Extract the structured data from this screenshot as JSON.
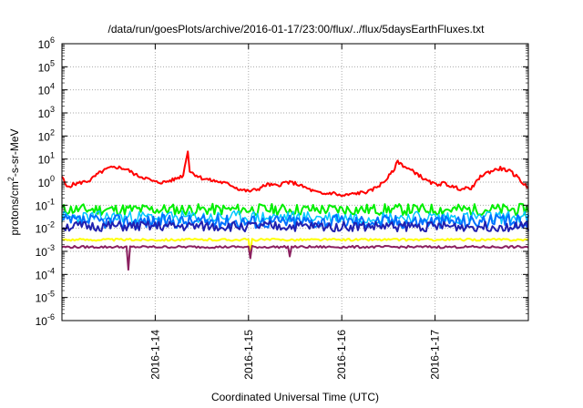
{
  "chart_data": {
    "type": "line",
    "title": "/data/run/goesPlots/archive/2016-01-17/23:00/flux/../flux/5daysEarthFluxes.txt",
    "xlabel": "Coordinated Universal Time (UTC)",
    "ylabel": {
      "pre": "protons/cm",
      "sup": "2",
      "post": "-s-sr-MeV"
    },
    "x_range_days": [
      0,
      5
    ],
    "x_ticks": [
      {
        "day": 1,
        "label": "2016-1-14"
      },
      {
        "day": 2,
        "label": "2016-1-15"
      },
      {
        "day": 3,
        "label": "2016-1-16"
      },
      {
        "day": 4,
        "label": "2016-1-17"
      }
    ],
    "y_scale": "log",
    "y_range_exp": [
      -6,
      6
    ],
    "y_ticks": [
      {
        "base": "10",
        "exp": "-6"
      },
      {
        "base": "10",
        "exp": "-5"
      },
      {
        "base": "10",
        "exp": "-4"
      },
      {
        "base": "10",
        "exp": "-3"
      },
      {
        "base": "10",
        "exp": "-2"
      },
      {
        "base": "10",
        "exp": "-1"
      },
      {
        "base": "10",
        "exp": "0"
      },
      {
        "base": "10",
        "exp": "1"
      },
      {
        "base": "10",
        "exp": "2"
      },
      {
        "base": "10",
        "exp": "3"
      },
      {
        "base": "10",
        "exp": "4"
      },
      {
        "base": "10",
        "exp": "5"
      },
      {
        "base": "10",
        "exp": "6"
      }
    ],
    "grid": true,
    "series": [
      {
        "color": "#ff0000",
        "stroke": 2,
        "x": [
          0,
          0.05,
          0.12,
          0.22,
          0.3,
          0.4,
          0.5,
          0.6,
          0.7,
          0.8,
          0.9,
          0.95,
          1.0,
          1.1,
          1.2,
          1.3,
          1.35,
          1.37,
          1.4,
          1.5,
          1.6,
          1.7,
          1.8,
          1.9,
          2.0,
          2.1,
          2.2,
          2.3,
          2.4,
          2.5,
          2.6,
          2.7,
          2.8,
          2.9,
          3.0,
          3.1,
          3.2,
          3.3,
          3.45,
          3.55,
          3.6,
          3.7,
          3.8,
          3.9,
          4.0,
          4.1,
          4.2,
          4.3,
          4.4,
          4.5,
          4.6,
          4.7,
          4.8,
          4.9,
          4.95,
          5.0
        ],
        "y": [
          1.8,
          0.6,
          0.8,
          1.0,
          1.2,
          2.5,
          4.0,
          4.5,
          3.5,
          2.0,
          1.5,
          1.2,
          1.0,
          1.0,
          1.3,
          2.0,
          25,
          3.0,
          2.5,
          1.5,
          1.2,
          1.0,
          0.8,
          0.5,
          0.4,
          0.5,
          0.8,
          0.7,
          1.0,
          0.9,
          0.6,
          0.4,
          0.3,
          0.35,
          0.25,
          0.3,
          0.35,
          0.4,
          1.0,
          3.0,
          8.0,
          4.0,
          2.5,
          1.2,
          0.8,
          0.9,
          0.6,
          0.5,
          0.6,
          2.0,
          3.0,
          4.0,
          3.0,
          1.5,
          0.8,
          0.6
        ]
      },
      {
        "color": "#00ee00",
        "stroke": 2,
        "x_start": 0,
        "x_end": 5,
        "level": 0.065,
        "jitter": 0.25,
        "seed": 11
      },
      {
        "color": "#00c8ff",
        "stroke": 1.5,
        "x_start": 0,
        "x_end": 5,
        "level": 0.03,
        "jitter": 0.28,
        "seed": 23
      },
      {
        "color": "#0070ff",
        "stroke": 2,
        "x_start": 0,
        "x_end": 5,
        "level": 0.02,
        "jitter": 0.3,
        "seed": 37
      },
      {
        "color": "#2020b0",
        "stroke": 2,
        "x_start": 0,
        "x_end": 5,
        "level": 0.012,
        "jitter": 0.22,
        "seed": 51
      },
      {
        "color": "#ffff00",
        "stroke": 2,
        "x_start": 0,
        "x_end": 5,
        "level": 0.0032,
        "jitter": 0.05,
        "seed": 63
      },
      {
        "color": "#8b2060",
        "stroke": 2,
        "x_start": 0,
        "x_end": 5,
        "level": 0.00155,
        "jitter": 0.05,
        "seed": 79
      }
    ],
    "dips": [
      {
        "series": 6,
        "day": 0.72,
        "value": 0.00016
      },
      {
        "series": 6,
        "day": 2.02,
        "value": 0.0005
      },
      {
        "series": 5,
        "day": 2.02,
        "value": 0.0007
      },
      {
        "series": 6,
        "day": 2.45,
        "value": 0.0006
      }
    ]
  }
}
